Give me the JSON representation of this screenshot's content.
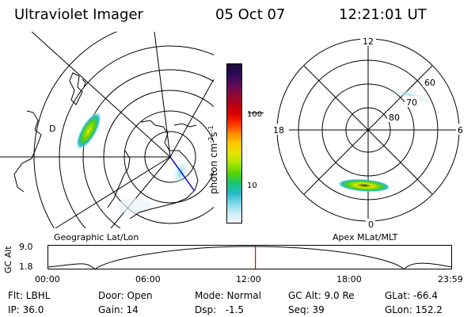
{
  "header": {
    "instrument": "Ultraviolet Imager",
    "date": "05 Oct 07",
    "time": "12:21:01 UT"
  },
  "colorbar": {
    "unit_label": "photon cm",
    "unit_exp1": "-2",
    "unit_mid": "s",
    "unit_exp2": "-1",
    "ticks": [
      "100",
      "10"
    ],
    "colors": [
      "#1a0a3a",
      "#2d0a55",
      "#5a0a5a",
      "#8a0a3a",
      "#b00018",
      "#d80000",
      "#ff3000",
      "#ff8a00",
      "#ffc800",
      "#e6e600",
      "#a8e600",
      "#5ad200",
      "#18c870",
      "#24b8c8",
      "#7ad8e8",
      "#c8ecf4",
      "#f4f8fc"
    ]
  },
  "geo_map": {
    "label": "Geographic Lat/Lon",
    "marker": "D"
  },
  "polar_map": {
    "label": "Apex MLat/MLT",
    "mlt_labels": {
      "top": "12",
      "left": "18",
      "right": "6",
      "bottom": "0"
    },
    "lat_labels": [
      "60",
      "70",
      "80"
    ]
  },
  "timeline": {
    "axis_title": "GC Alt",
    "y_ticks": [
      "9.0",
      "1.8"
    ],
    "x_ticks": [
      "00:00",
      "06:00",
      "12:00",
      "18:00",
      "23:59"
    ],
    "current_time_fraction": 0.514
  },
  "status": {
    "filter": "Flt: LBHL",
    "door": "Door: Open",
    "mode": "Mode: Normal",
    "gc_alt": "GC Alt: 9.0 Re",
    "glat": "GLat: -66.4",
    "ip": "IP: 36.0",
    "gain": "Gain: 14",
    "dsp_label": "Dsp:",
    "dsp_value": "-1.5",
    "seq": "Seq: 39",
    "glon": "GLon: 152.2"
  }
}
